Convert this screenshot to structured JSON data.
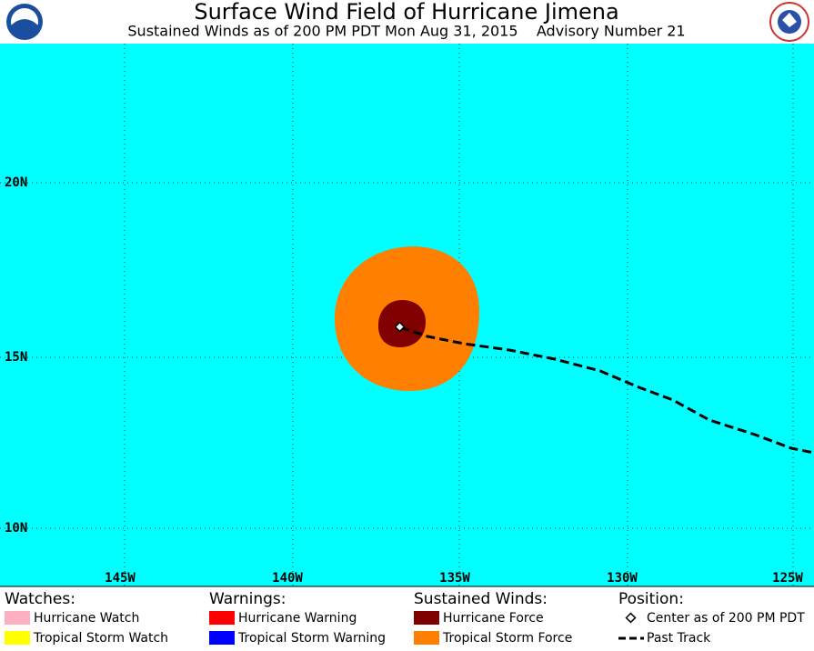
{
  "header": {
    "title": "Surface Wind Field of Hurricane Jimena",
    "subtitle": "Sustained Winds as of 200 PM PDT Mon Aug 31, 2015    Advisory Number 21"
  },
  "map": {
    "lat_labels": [
      "20N",
      "15N",
      "10N"
    ],
    "lon_labels": [
      "145W",
      "140W",
      "135W",
      "130W",
      "125W"
    ]
  },
  "legend": {
    "watches": {
      "heading": "Watches:",
      "items": [
        "Hurricane Watch",
        "Tropical Storm Watch"
      ]
    },
    "warnings": {
      "heading": "Warnings:",
      "items": [
        "Hurricane Warning",
        "Tropical Storm Warning"
      ]
    },
    "winds": {
      "heading": "Sustained Winds:",
      "items": [
        "Hurricane Force",
        "Tropical Storm Force"
      ]
    },
    "position": {
      "heading": "Position:",
      "items": [
        "Center as of 200 PM PDT",
        "Past Track"
      ]
    }
  }
}
